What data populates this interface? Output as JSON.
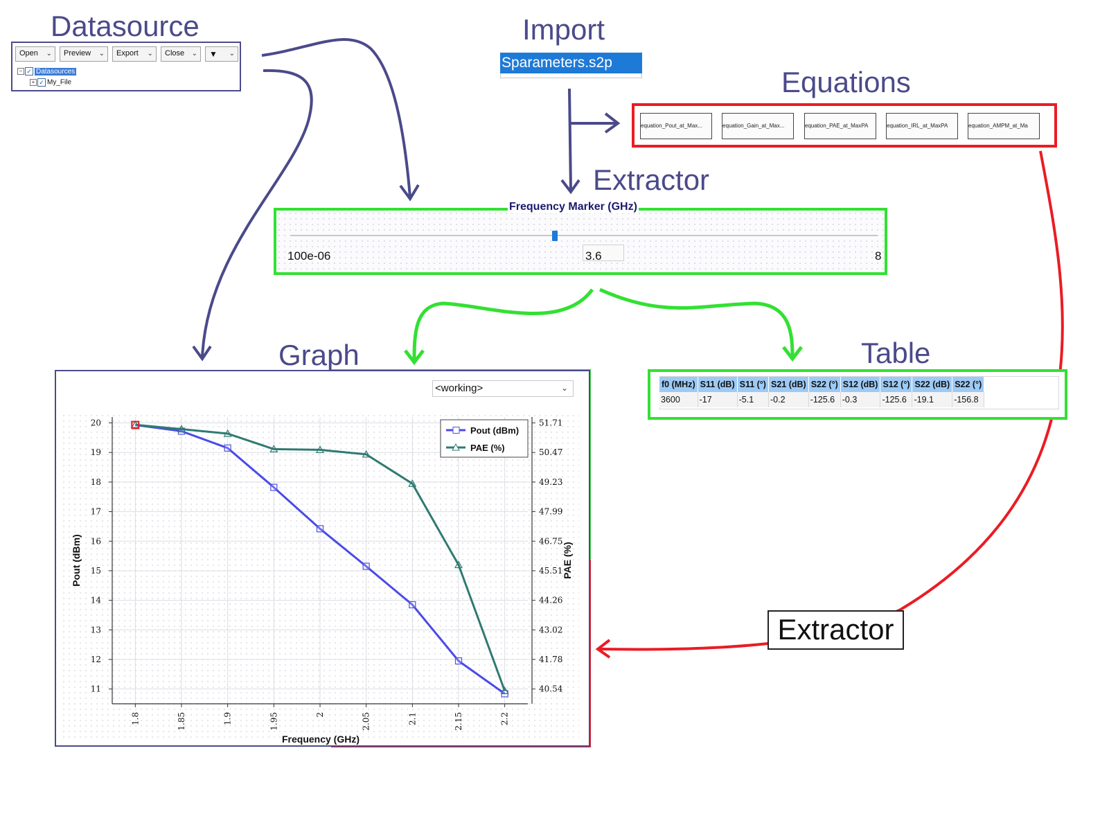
{
  "titles": {
    "datasource": "Datasource",
    "import": "Import",
    "equations": "Equations",
    "extractor": "Extractor",
    "graph": "Graph",
    "table": "Table",
    "extractor_bottom": "Extractor"
  },
  "datasource_panel": {
    "buttons": [
      "Open",
      "Preview",
      "Export",
      "Close"
    ],
    "filter_icon": "funnel-icon",
    "tree": {
      "root": "Datasources",
      "child": "My_File"
    }
  },
  "import_panel": {
    "selected_file": "Sparameters.s2p"
  },
  "equations_panel": {
    "items": [
      "equation_Pout_at_Max...",
      "equation_Gain_at_Max...",
      "equation_PAE_at_MaxPA",
      "equation_IRL_at_MaxPA",
      "equation_AMPM_at_Ma"
    ]
  },
  "extractor_panel": {
    "legend": "Frequency Marker (GHz)",
    "min_label": "100e-06",
    "value": "3.6",
    "max_label": "8",
    "slider_fraction": 0.45
  },
  "graph_panel": {
    "selector_value": "<working>"
  },
  "table_panel": {
    "headers": [
      "f0 (MHz)",
      "S11 (dB)",
      "S11 (°)",
      "S21 (dB)",
      "S22 (°)",
      "S12 (dB)",
      "S12 (°)",
      "S22 (dB)",
      "S22 (°)"
    ],
    "rows": [
      [
        "3600",
        "-17",
        "-5.1",
        "-0.2",
        "-125.6",
        "-0.3",
        "-125.6",
        "-19.1",
        "-156.8"
      ]
    ]
  },
  "colors": {
    "title_purple": "#4a4a8a",
    "arrow_green": "#33e033",
    "arrow_red": "#ea1c24",
    "pout_line": "#4a4ae8",
    "pae_line": "#2f7a72"
  },
  "chart_data": {
    "type": "line",
    "x": [
      1.8,
      1.85,
      1.9,
      1.95,
      2,
      2.05,
      2.1,
      2.15,
      2.2
    ],
    "x_tick_labels": [
      "1.8",
      "1.85",
      "1.9",
      "1.95",
      "2",
      "2.05",
      "2.1",
      "2.15",
      "2.2"
    ],
    "xlabel": "Frequency (GHz)",
    "ylabel": "Pout (dBm)",
    "ylabel_right": "PAE (%)",
    "ylim": [
      10.5,
      20.2
    ],
    "y_ticks": [
      11,
      12,
      13,
      14,
      15,
      16,
      17,
      18,
      19,
      20
    ],
    "y2_ticks": [
      "40.54",
      "41.78",
      "43.02",
      "44.26",
      "45.51",
      "46.75",
      "47.99",
      "49.23",
      "50.47",
      "51.71"
    ],
    "grid": true,
    "legend_position": "top-right",
    "series": [
      {
        "name": "Pout (dBm)",
        "axis": "left",
        "marker": "square",
        "values": [
          19.93,
          19.72,
          19.15,
          17.82,
          16.42,
          15.15,
          13.85,
          11.95,
          10.84
        ]
      },
      {
        "name": "PAE (%)",
        "axis": "right",
        "marker": "triangle",
        "values": [
          51.63,
          51.45,
          51.26,
          50.61,
          50.58,
          50.39,
          49.16,
          45.75,
          40.46
        ]
      }
    ]
  }
}
